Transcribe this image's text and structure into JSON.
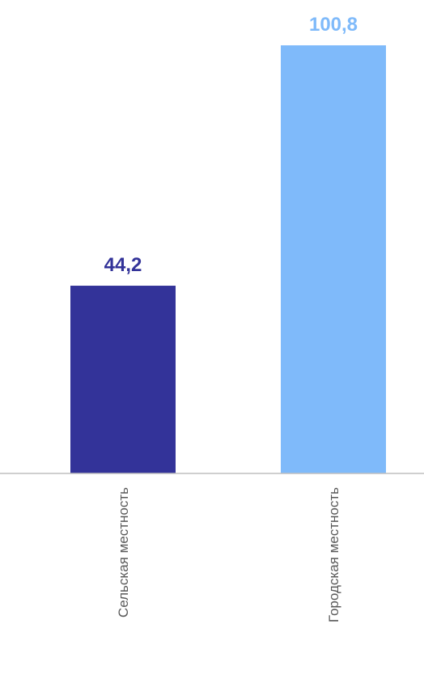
{
  "chart_data": {
    "type": "bar",
    "categories": [
      "Сельская местность",
      "Городская местность"
    ],
    "values": [
      44.2,
      100.8
    ],
    "value_labels": [
      "44,2",
      "100,8"
    ],
    "colors": [
      "#333399",
      "#7FBAFA"
    ],
    "title": "",
    "xlabel": "",
    "ylabel": "",
    "ylim": [
      0,
      100.8
    ],
    "grid": false,
    "legend": "none"
  }
}
